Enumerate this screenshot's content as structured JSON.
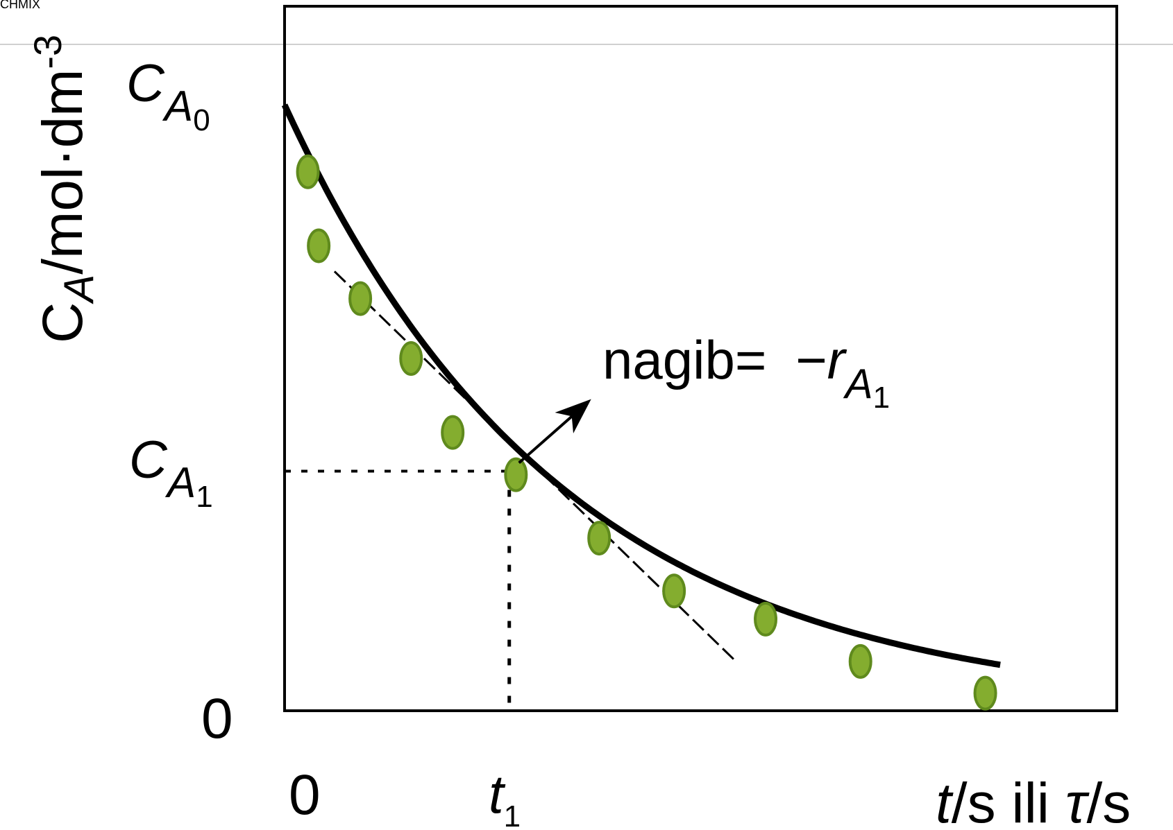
{
  "header_fragment": "CHMIX",
  "chart_data": {
    "type": "scatter",
    "ylabel": {
      "main": "C",
      "sub": "A",
      "rest": "/mol·dm",
      "sup": "-3"
    },
    "xlabel": {
      "t_var": "t",
      "t_unit": "/s ili ",
      "tau_var": "τ",
      "tau_unit": "/s"
    },
    "x_tick_zero": "0",
    "y_tick_zero": "0",
    "x_tick_t1": {
      "main": "t",
      "sub": "1"
    },
    "y_tick_ca0": {
      "main": "C",
      "sub": "A",
      "subsub": "0"
    },
    "y_tick_ca1": {
      "main": "C",
      "sub": "A",
      "subsub": "1"
    },
    "annotation": {
      "text": "nagib= ",
      "minus": "−",
      "var": "r",
      "sub": "A",
      "subsub": "1"
    },
    "xlim": [
      0,
      10
    ],
    "ylim": [
      0,
      1
    ],
    "model": {
      "type": "exponential_decay",
      "c0": 0.86,
      "k": 0.3,
      "x_end": 8.6
    },
    "t1": 2.7,
    "ca1": 0.34,
    "tangent_x_range": [
      0.6,
      5.4
    ],
    "points": [
      {
        "x": 0.28,
        "y": 0.765
      },
      {
        "x": 0.41,
        "y": 0.66
      },
      {
        "x": 0.91,
        "y": 0.585
      },
      {
        "x": 1.52,
        "y": 0.5
      },
      {
        "x": 2.02,
        "y": 0.395
      },
      {
        "x": 2.78,
        "y": 0.335
      },
      {
        "x": 3.78,
        "y": 0.245
      },
      {
        "x": 4.68,
        "y": 0.17
      },
      {
        "x": 5.78,
        "y": 0.13
      },
      {
        "x": 6.92,
        "y": 0.07
      },
      {
        "x": 8.42,
        "y": 0.025
      }
    ],
    "grid": false,
    "legend": "none",
    "colors": {
      "curve": "#000000",
      "point_fill": "#84ad2f",
      "point_stroke": "#5f8a1d",
      "frame": "#000000",
      "header_line": "#d0d0d0",
      "header_text": "#8fc23c"
    }
  }
}
